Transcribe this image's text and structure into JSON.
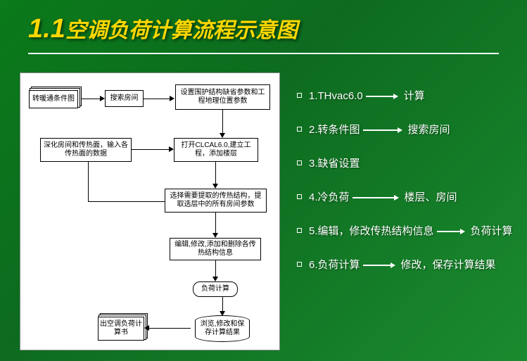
{
  "title": {
    "num": "1.1",
    "text": "空调负荷计算流程示意图"
  },
  "colors": {
    "bg_start": "#0a7a1a",
    "bg_end": "#1a8a2f",
    "title_color": "#ffd700",
    "text_color": "#ffffff",
    "box_bg": "#ffffff",
    "box_border": "#000000"
  },
  "flow": {
    "n1": "转暖通条件图",
    "n2": "搜索房间",
    "n3": "设置围护结构缺省参数和工程地理位置参数",
    "n4": "深化房间和传热面，输入各传热面的数据",
    "n5": "打开CLCAL6.0,建立工程，添加楼层",
    "n6": "选择需要提取的传热结构，提取选层中的所有房间参数",
    "n7": "编辑,修改,添加和删除各传热结构信息",
    "n8": "负荷计算",
    "n9": "出空调负荷计算书",
    "n10": "浏览,修改和保存计算结果"
  },
  "bullets": [
    {
      "parts": [
        {
          "t": "1.THvac6.0"
        },
        {
          "arrow": 40
        },
        {
          "t": "计算"
        }
      ]
    },
    {
      "parts": [
        {
          "t": "2.转条件图"
        },
        {
          "arrow": 50
        },
        {
          "t": "搜索房间"
        }
      ]
    },
    {
      "parts": [
        {
          "t": "3.缺省设置"
        }
      ]
    },
    {
      "parts": [
        {
          "t": "4.冷负荷"
        },
        {
          "arrow": 60
        },
        {
          "t": "楼层、房间"
        }
      ]
    },
    {
      "parts": [
        {
          "t": "5.编辑，修改传热结构信息"
        },
        {
          "arrow": 34
        },
        {
          "t": "负荷计算"
        }
      ]
    },
    {
      "parts": [
        {
          "t": "6.负荷计算"
        },
        {
          "arrow": 40
        },
        {
          "t": "修改，保存计算结果"
        }
      ]
    }
  ]
}
